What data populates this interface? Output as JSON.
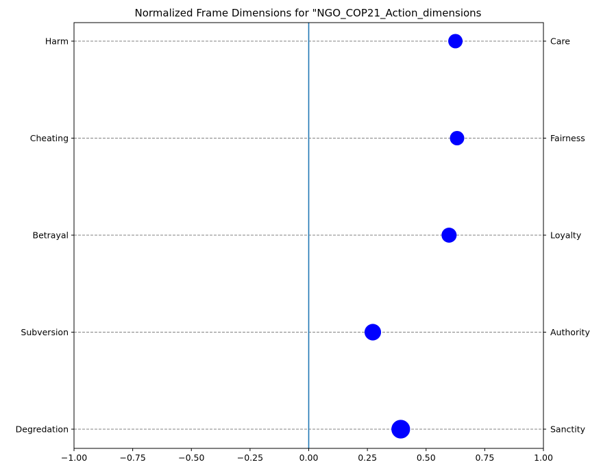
{
  "chart_data": {
    "type": "scatter",
    "title": "Normalized Frame Dimensions for \"NGO_COP21_Action_dimensions",
    "xlim": [
      -1.0,
      1.0
    ],
    "x_ticks": [
      "−1.00",
      "−0.75",
      "−0.50",
      "−0.25",
      "0.00",
      "0.25",
      "0.50",
      "0.75",
      "1.00"
    ],
    "left_labels": [
      "Harm",
      "Cheating",
      "Betrayal",
      "Subversion",
      "Degredation"
    ],
    "right_labels": [
      "Care",
      "Fairness",
      "Loyalty",
      "Authority",
      "Sanctity"
    ],
    "points": [
      {
        "x": 0.625,
        "size": 1.0
      },
      {
        "x": 0.632,
        "size": 1.0
      },
      {
        "x": 0.598,
        "size": 1.05
      },
      {
        "x": 0.273,
        "size": 1.15
      },
      {
        "x": 0.392,
        "size": 1.3
      }
    ],
    "zero_line_color": "#1f77b4",
    "point_color": "#0000ff",
    "grid": "horizontal dashed"
  }
}
